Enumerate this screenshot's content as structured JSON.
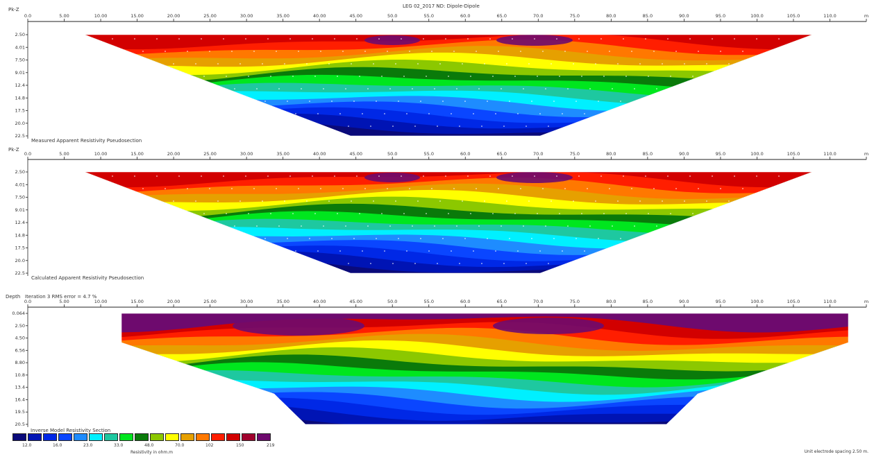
{
  "title": "LEG 02_2017 ND: Dipole-Dipole",
  "colors": [
    "#0a0a7a",
    "#0014b4",
    "#0028e6",
    "#0a46ff",
    "#1e8cff",
    "#00f0ff",
    "#1ec8a0",
    "#00e61e",
    "#0a7a0a",
    "#8cc800",
    "#ffff00",
    "#e6a000",
    "#ff7800",
    "#ff1e00",
    "#d20000",
    "#a0002d",
    "#6e0a6e"
  ],
  "chart_data": [
    {
      "type": "heatmap",
      "name": "measured",
      "caption": "Measured Apparent Resistivity Pseudosection",
      "axis_unit": "Pk-Z",
      "x_ticks": [
        "0.0",
        "5.00",
        "10.00",
        "15.00",
        "20.00",
        "25.00",
        "30.00",
        "35.00",
        "40.00",
        "45.00",
        "50.0",
        "55.0",
        "60.0",
        "65.0",
        "70.0",
        "75.0",
        "80.0",
        "85.0",
        "90.0",
        "95.0",
        "100.0",
        "105.0",
        "110.0",
        "m"
      ],
      "y_ticks": [
        "2.50",
        "4.01",
        "7.50",
        "9.01",
        "12.4",
        "14.8",
        "17.5",
        "20.0",
        "22.5"
      ],
      "xlim": [
        0,
        115
      ],
      "ylim": [
        2.5,
        22.5
      ],
      "grid": true
    },
    {
      "type": "heatmap",
      "name": "calculated",
      "caption": "Calculated Apparent Resistivity Pseudosection",
      "axis_unit": "Pk-Z",
      "x_ticks": [
        "0.0",
        "5.00",
        "10.00",
        "15.00",
        "20.00",
        "25.00",
        "30.00",
        "35.00",
        "40.00",
        "45.00",
        "50.0",
        "55.0",
        "60.0",
        "65.0",
        "70.0",
        "75.0",
        "80.0",
        "85.0",
        "90.0",
        "95.0",
        "100.0",
        "105.0",
        "110.0",
        "m"
      ],
      "y_ticks": [
        "2.50",
        "4.01",
        "7.50",
        "9.01",
        "12.4",
        "14.8",
        "17.5",
        "20.0",
        "22.5"
      ],
      "xlim": [
        0,
        115
      ],
      "ylim": [
        2.5,
        22.5
      ],
      "grid": true
    },
    {
      "type": "heatmap",
      "name": "inverse",
      "caption": "Inverse Model Resistivity Section",
      "axis_unit": "Depth",
      "header_text": "Iteration 3 RMS error = 4.7 %",
      "x_ticks": [
        "0.0",
        "5.00",
        "10.00",
        "15.00",
        "20.00",
        "25.00",
        "30.00",
        "35.00",
        "40.00",
        "45.00",
        "50.0",
        "55.0",
        "60.0",
        "65.0",
        "70.0",
        "75.0",
        "80.0",
        "85.0",
        "90.0",
        "95.0",
        "100.0",
        "105.0",
        "110.0",
        "m"
      ],
      "y_ticks": [
        "0.064",
        "2.50",
        "4.50",
        "6.56",
        "8.80",
        "10.8",
        "13.4",
        "16.4",
        "19.5",
        "20.5"
      ],
      "xlim": [
        0,
        115
      ],
      "ylim": [
        0,
        20.5
      ],
      "grid": true
    }
  ],
  "legend": {
    "values": [
      "12.0",
      "16.0",
      "23.0",
      "33.0",
      "48.0",
      "70.0",
      "102",
      "150",
      "219"
    ],
    "unit": "Resistivity in ohm.m"
  },
  "footnote": "Unit electrode spacing 2.50 m."
}
